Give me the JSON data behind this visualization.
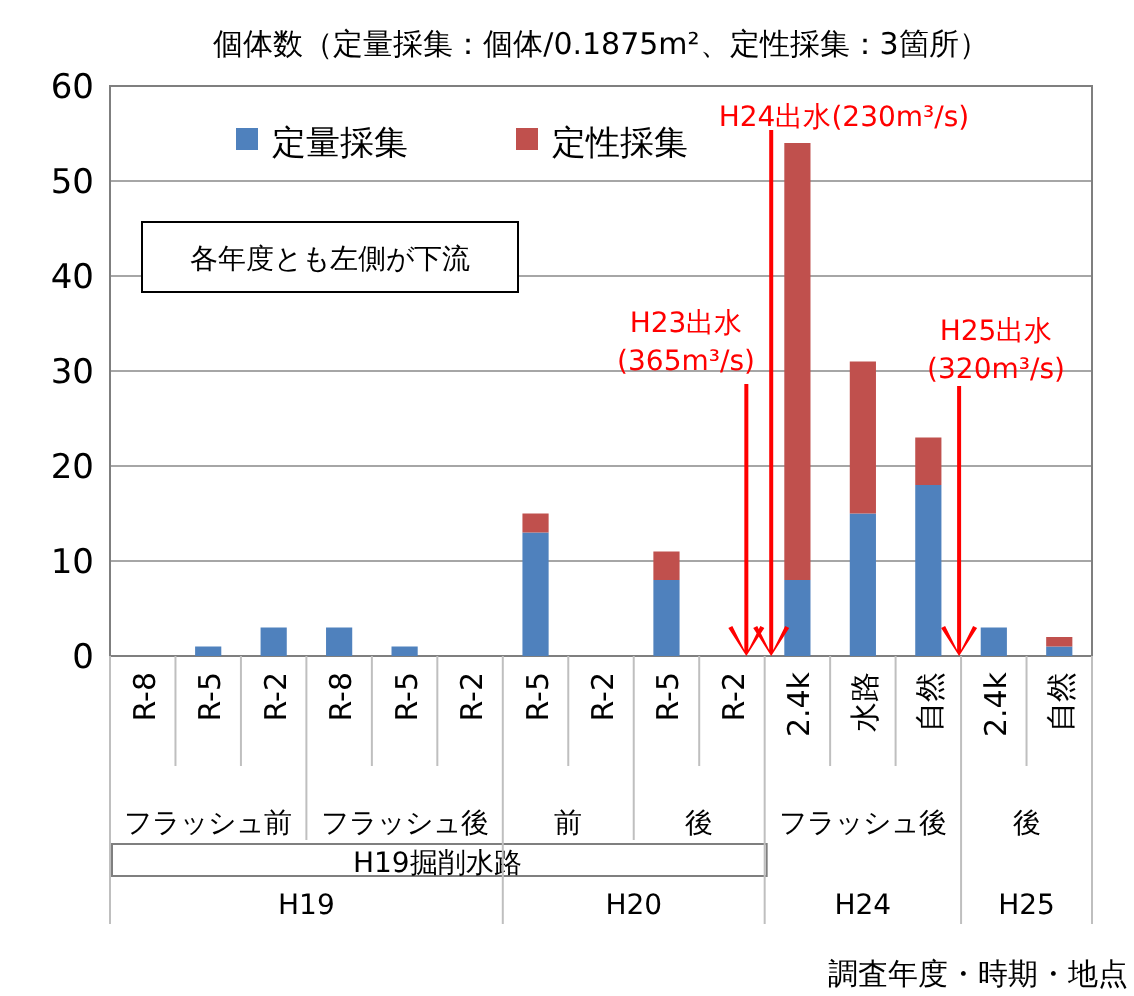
{
  "chart_data": {
    "type": "bar",
    "stacked": true,
    "title": "個体数（定量採集：個体/0.1875m²、定性採集：3箇所）",
    "categories": [
      "R-8",
      "R-5",
      "R-2",
      "R-8",
      "R-5",
      "R-2",
      "R-5",
      "R-2",
      "R-5",
      "R-2",
      "2.4k",
      "水路",
      "自然",
      "2.4k",
      "自然"
    ],
    "series": [
      {
        "name": "定量採集",
        "color": "#4f81bd",
        "values": [
          0,
          1,
          3,
          3,
          1,
          0,
          13,
          0,
          8,
          0,
          8,
          15,
          18,
          3,
          1
        ]
      },
      {
        "name": "定性採集",
        "color": "#c0504d",
        "values": [
          0,
          0,
          0,
          0,
          0,
          0,
          2,
          0,
          3,
          0,
          46,
          16,
          5,
          0,
          1
        ]
      }
    ],
    "ylim": [
      0,
      60
    ],
    "yticks": [
      0,
      10,
      20,
      30,
      40,
      50,
      60
    ],
    "grid": "y",
    "legend": "top",
    "annotations": [
      "各年度とも左側が下流",
      "H23出水",
      "(365m³/s)",
      "H24出水(230m³/s)",
      "H25出水",
      "(320m³/s)",
      "フラッシュ前",
      "フラッシュ後",
      "前",
      "後",
      "フラッシュ後",
      "後",
      "H19掘削水路",
      "H19",
      "H20",
      "H24",
      "H25",
      "調査年度・時期・地点"
    ]
  }
}
